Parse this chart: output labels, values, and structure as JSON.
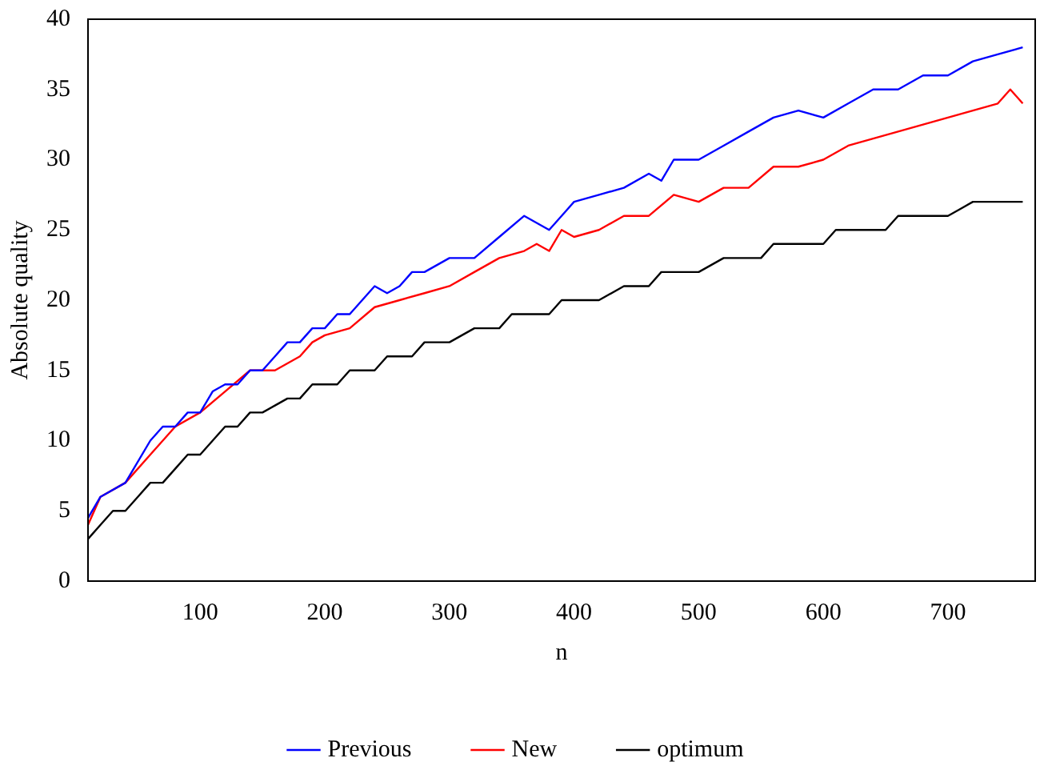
{
  "chart_data": {
    "type": "line",
    "xlabel": "n",
    "ylabel": "Absolute quality",
    "xlim": [
      10,
      770
    ],
    "xticks": [
      100,
      200,
      300,
      400,
      500,
      600,
      700
    ],
    "ylim": [
      0,
      40
    ],
    "yticks": [
      0,
      5,
      10,
      15,
      20,
      25,
      30,
      35,
      40
    ],
    "grid": false,
    "legend": "bottom",
    "marker": "none",
    "line_style": "solid",
    "series": [
      {
        "name": "Previous",
        "color": "#0000ff",
        "x": [
          10,
          20,
          40,
          60,
          70,
          80,
          90,
          100,
          110,
          120,
          130,
          140,
          150,
          160,
          170,
          180,
          190,
          200,
          210,
          220,
          230,
          240,
          250,
          260,
          270,
          280,
          300,
          320,
          340,
          360,
          380,
          390,
          400,
          420,
          440,
          460,
          470,
          480,
          500,
          520,
          540,
          560,
          580,
          600,
          620,
          640,
          660,
          680,
          700,
          720,
          740,
          760
        ],
        "values": [
          4.5,
          6,
          7,
          10,
          11,
          11,
          12,
          12,
          13.5,
          14,
          14,
          15,
          15,
          16,
          17,
          17,
          18,
          18,
          19,
          19,
          20,
          21,
          20.5,
          21,
          22,
          22,
          23,
          23,
          24.5,
          26,
          25,
          26,
          27,
          27.5,
          28,
          29,
          28.5,
          30,
          30,
          31,
          32,
          33,
          33.5,
          33,
          34,
          35,
          35,
          36,
          36,
          37,
          37.5,
          38
        ]
      },
      {
        "name": "New",
        "color": "#ff0000",
        "x": [
          10,
          20,
          40,
          60,
          80,
          100,
          120,
          140,
          160,
          170,
          180,
          190,
          200,
          220,
          240,
          260,
          280,
          300,
          320,
          340,
          360,
          370,
          380,
          390,
          400,
          420,
          440,
          460,
          480,
          500,
          520,
          540,
          560,
          580,
          600,
          620,
          640,
          660,
          680,
          700,
          720,
          740,
          750,
          760
        ],
        "values": [
          4,
          6,
          7,
          9,
          11,
          12,
          13.5,
          15,
          15,
          15.5,
          16,
          17,
          17.5,
          18,
          19.5,
          20,
          20.5,
          21,
          22,
          23,
          23.5,
          24,
          23.5,
          25,
          24.5,
          25,
          26,
          26,
          27.5,
          27,
          28,
          28,
          29.5,
          29.5,
          30,
          31,
          31.5,
          32,
          32.5,
          33,
          33.5,
          34,
          35,
          34
        ]
      },
      {
        "name": "optimum",
        "color": "#000000",
        "x": [
          10,
          20,
          30,
          40,
          50,
          60,
          70,
          80,
          90,
          100,
          110,
          120,
          130,
          140,
          150,
          160,
          170,
          180,
          190,
          200,
          210,
          220,
          230,
          240,
          250,
          260,
          270,
          280,
          290,
          300,
          310,
          320,
          330,
          340,
          350,
          360,
          370,
          380,
          390,
          400,
          420,
          440,
          450,
          460,
          470,
          480,
          500,
          510,
          520,
          530,
          550,
          560,
          570,
          590,
          600,
          610,
          620,
          650,
          660,
          670,
          700,
          710,
          720,
          760
        ],
        "values": [
          3,
          4,
          5,
          5,
          6,
          7,
          7,
          8,
          9,
          9,
          10,
          11,
          11,
          12,
          12,
          12.5,
          13,
          13,
          14,
          14,
          14,
          15,
          15,
          15,
          16,
          16,
          16,
          17,
          17,
          17,
          17.5,
          18,
          18,
          18,
          19,
          19,
          19,
          19,
          20,
          20,
          20,
          21,
          21,
          21,
          22,
          22,
          22,
          22.5,
          23,
          23,
          23,
          24,
          24,
          24,
          24,
          25,
          25,
          25,
          26,
          26,
          26,
          26.5,
          27,
          27
        ]
      }
    ]
  }
}
